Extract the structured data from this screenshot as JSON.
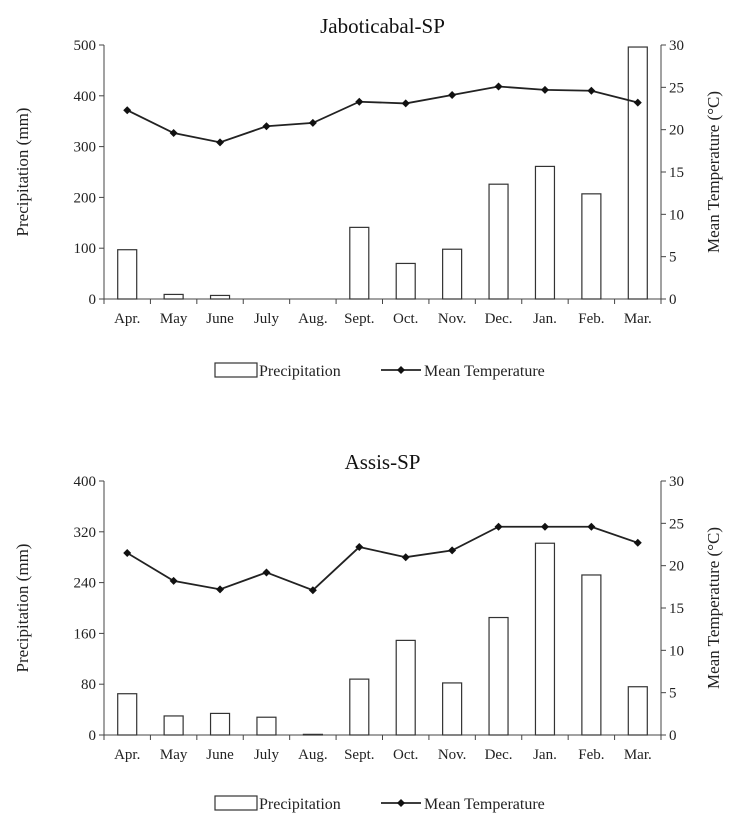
{
  "chart_data": [
    {
      "type": "bar",
      "title": "Jaboticabal-SP",
      "categories": [
        "Apr.",
        "May",
        "June",
        "July",
        "Aug.",
        "Sept.",
        "Oct.",
        "Nov.",
        "Dec.",
        "Jan.",
        "Feb.",
        "Mar."
      ],
      "ylabel": "Precipitation (mm)",
      "y2label": "Mean Temperature (°C)",
      "ylim": [
        0,
        500
      ],
      "yticks": [
        0,
        100,
        200,
        300,
        400,
        500
      ],
      "y2lim": [
        0,
        30
      ],
      "y2ticks": [
        0,
        5,
        10,
        15,
        20,
        25,
        30
      ],
      "grid": false,
      "legend_position": "bottom",
      "series": [
        {
          "name": "Precipitation",
          "type": "bar",
          "axis": "left",
          "values": [
            97,
            9,
            7,
            0,
            0,
            141,
            70,
            98,
            226,
            261,
            207,
            496
          ]
        },
        {
          "name": "Mean Temperature",
          "type": "line",
          "axis": "right",
          "values": [
            22.3,
            19.6,
            18.5,
            20.4,
            20.8,
            23.3,
            23.1,
            24.1,
            25.1,
            24.7,
            24.6,
            23.2
          ]
        }
      ]
    },
    {
      "type": "bar",
      "title": "Assis-SP",
      "categories": [
        "Apr.",
        "May",
        "June",
        "July",
        "Aug.",
        "Sept.",
        "Oct.",
        "Nov.",
        "Dec.",
        "Jan.",
        "Feb.",
        "Mar."
      ],
      "ylabel": "Precipitation (mm)",
      "y2label": "Mean Temperature (°C)",
      "ylim": [
        0,
        400
      ],
      "yticks": [
        0,
        80,
        160,
        240,
        320,
        400
      ],
      "y2lim": [
        0,
        30
      ],
      "y2ticks": [
        0,
        5,
        10,
        15,
        20,
        25,
        30
      ],
      "grid": false,
      "legend_position": "bottom",
      "series": [
        {
          "name": "Precipitation",
          "type": "bar",
          "axis": "left",
          "values": [
            65,
            30,
            34,
            28,
            1,
            88,
            149,
            82,
            185,
            302,
            252,
            76
          ]
        },
        {
          "name": "Mean Temperature",
          "type": "line",
          "axis": "right",
          "values": [
            21.5,
            18.2,
            17.2,
            19.2,
            17.1,
            22.2,
            21.0,
            21.8,
            24.6,
            24.6,
            24.6,
            22.7
          ]
        }
      ]
    }
  ],
  "legend": {
    "precipitation_label": "Precipitation",
    "temperature_label": "Mean Temperature"
  }
}
